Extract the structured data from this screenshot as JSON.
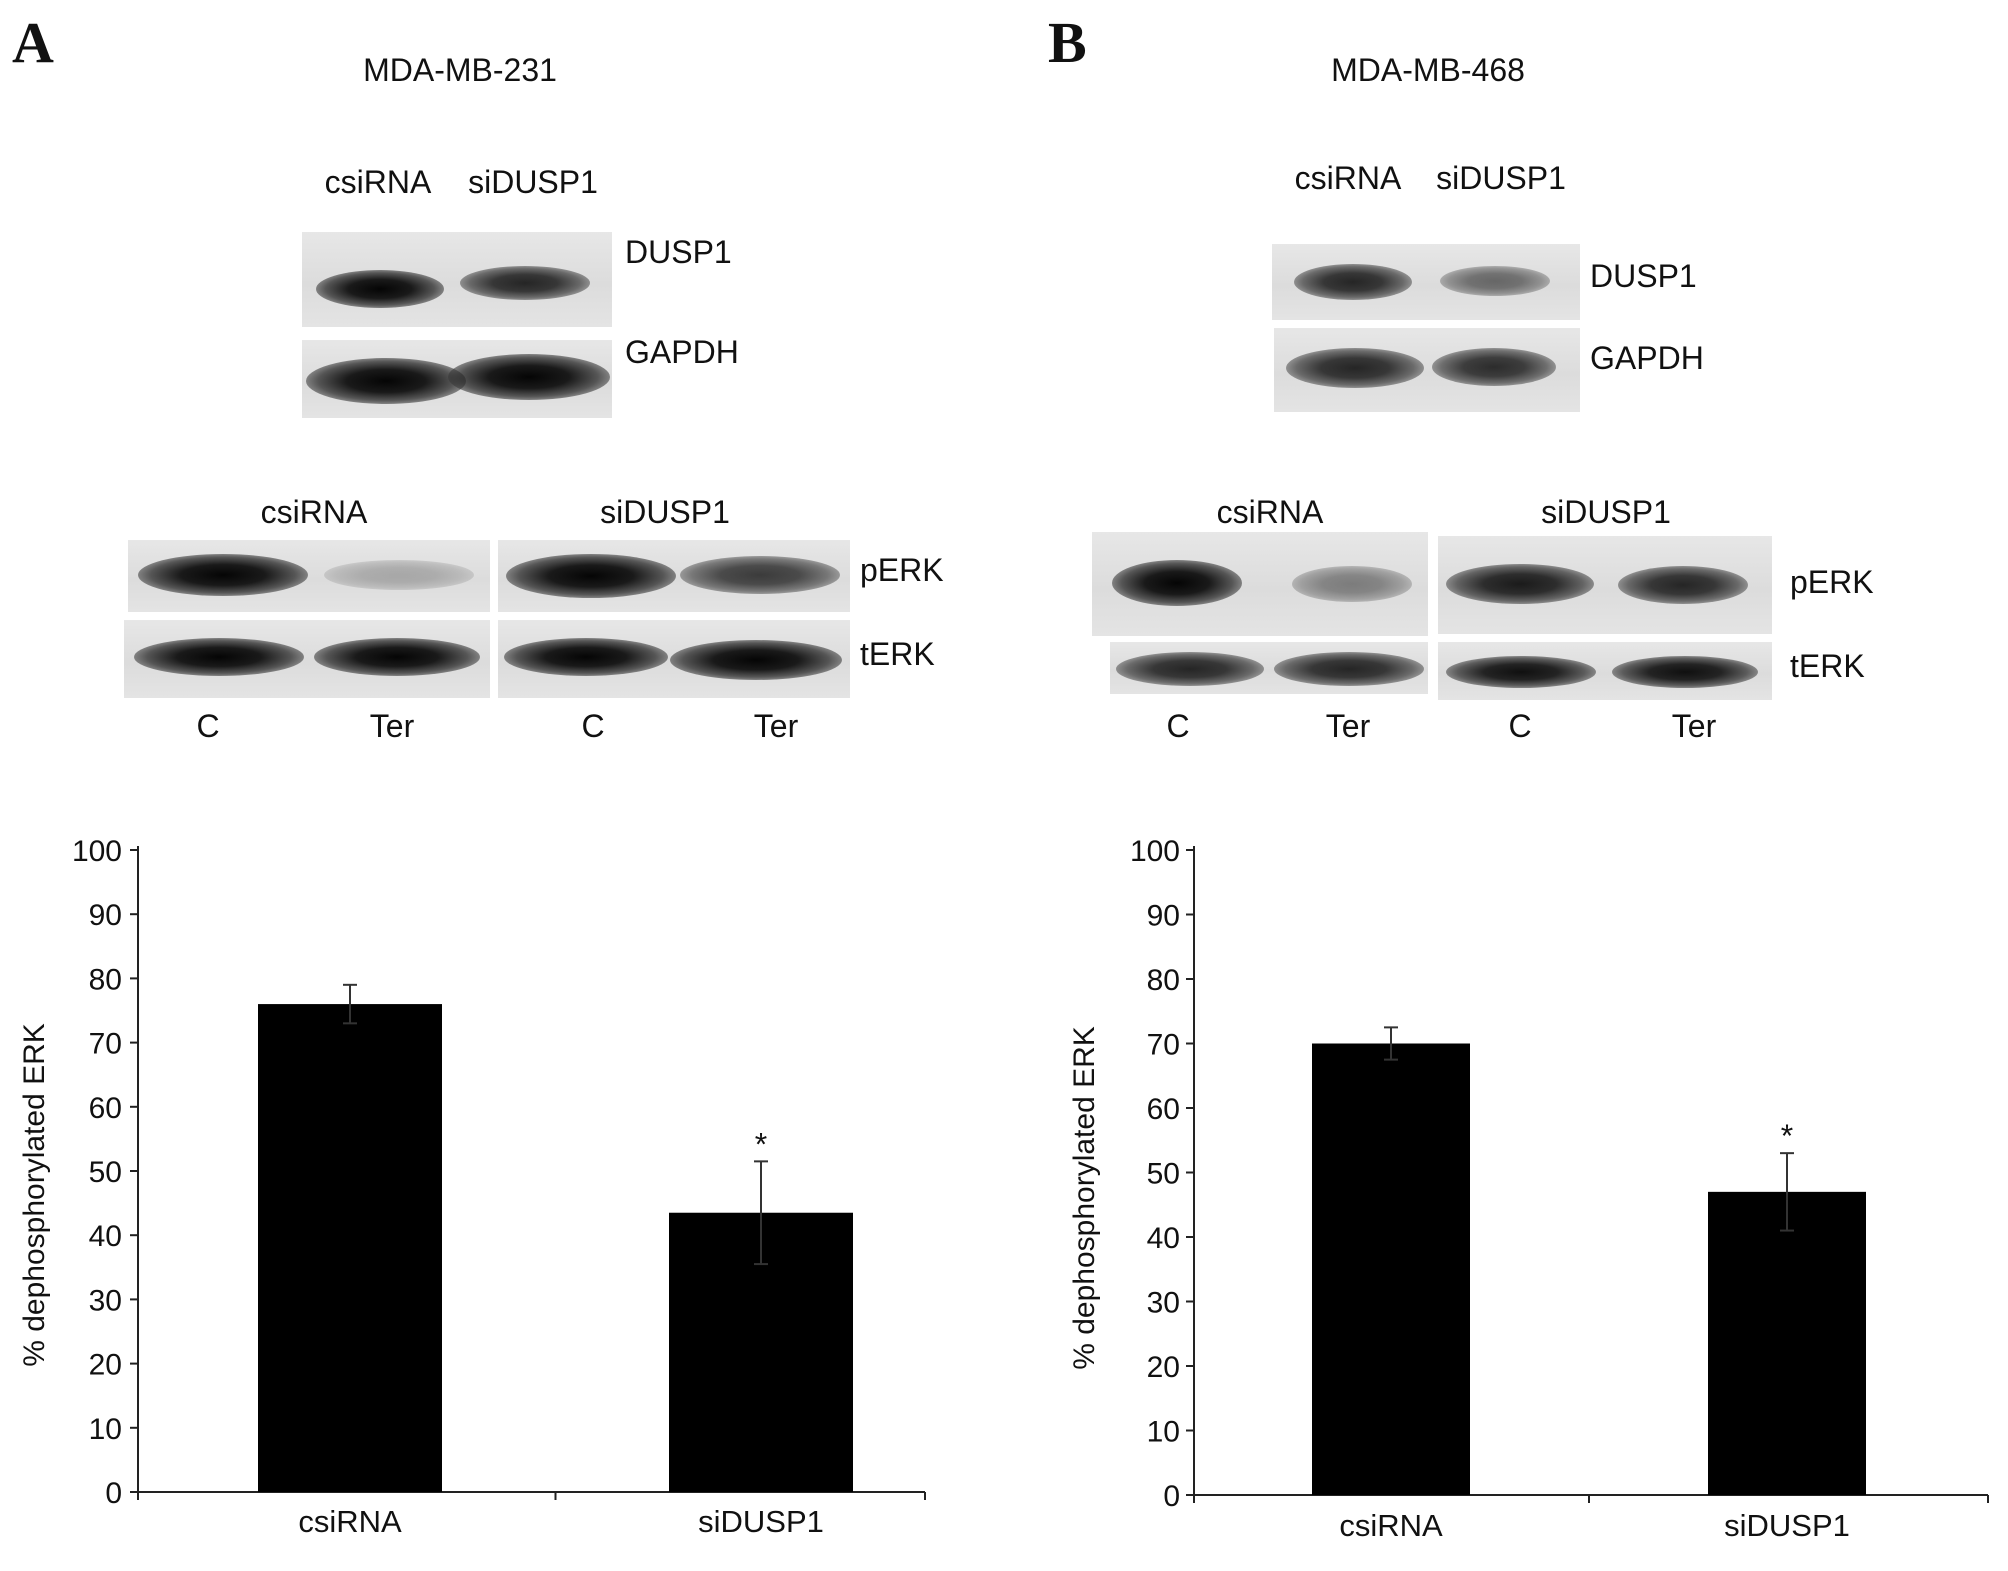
{
  "panel_a": {
    "letter": "A",
    "cell_line": "MDA-MB-231",
    "knockdown": {
      "lanes": [
        "csiRNA",
        "siDUSP1"
      ],
      "rows": [
        "DUSP1",
        "GAPDH"
      ],
      "intensity": {
        "DUSP1": [
          0.95,
          0.8
        ],
        "GAPDH": [
          1.0,
          1.0
        ]
      }
    },
    "erk": {
      "groups": [
        "csiRNA",
        "siDUSP1"
      ],
      "lanes": [
        "C",
        "Ter",
        "C",
        "Ter"
      ],
      "rows": [
        "pERK",
        "tERK"
      ],
      "intensity": {
        "pERK": [
          1.0,
          0.25,
          1.0,
          0.7
        ],
        "tERK": [
          0.95,
          0.95,
          0.95,
          0.95
        ]
      }
    }
  },
  "panel_b": {
    "letter": "B",
    "cell_line": "MDA-MB-468",
    "knockdown": {
      "lanes": [
        "csiRNA",
        "siDUSP1"
      ],
      "rows": [
        "DUSP1",
        "GAPDH"
      ],
      "intensity": {
        "DUSP1": [
          0.85,
          0.5
        ],
        "GAPDH": [
          0.85,
          0.85
        ]
      }
    },
    "erk": {
      "groups": [
        "csiRNA",
        "siDUSP1"
      ],
      "lanes": [
        "C",
        "Ter",
        "C",
        "Ter"
      ],
      "rows": [
        "pERK",
        "tERK"
      ],
      "intensity": {
        "pERK": [
          1.0,
          0.45,
          0.9,
          0.85
        ],
        "tERK": [
          0.85,
          0.85,
          0.95,
          0.95
        ]
      }
    }
  },
  "chart_data": [
    {
      "type": "bar",
      "categories": [
        "csiRNA",
        "siDUSP1"
      ],
      "values": [
        76,
        43.5
      ],
      "error": [
        3,
        8
      ],
      "annotations": [
        "",
        "*"
      ],
      "ylabel": "% dephosphorylated ERK",
      "ylim": [
        0,
        100
      ],
      "yticks": [
        0,
        10,
        20,
        30,
        40,
        50,
        60,
        70,
        80,
        90,
        100
      ],
      "grid": false,
      "bar_color": "#000000"
    },
    {
      "type": "bar",
      "categories": [
        "csiRNA",
        "siDUSP1"
      ],
      "values": [
        70,
        47
      ],
      "error": [
        2.5,
        6
      ],
      "annotations": [
        "",
        "*"
      ],
      "ylabel": "% dephosphorylated ERK",
      "ylim": [
        0,
        100
      ],
      "yticks": [
        0,
        10,
        20,
        30,
        40,
        50,
        60,
        70,
        80,
        90,
        100
      ],
      "grid": false,
      "bar_color": "#000000"
    }
  ]
}
